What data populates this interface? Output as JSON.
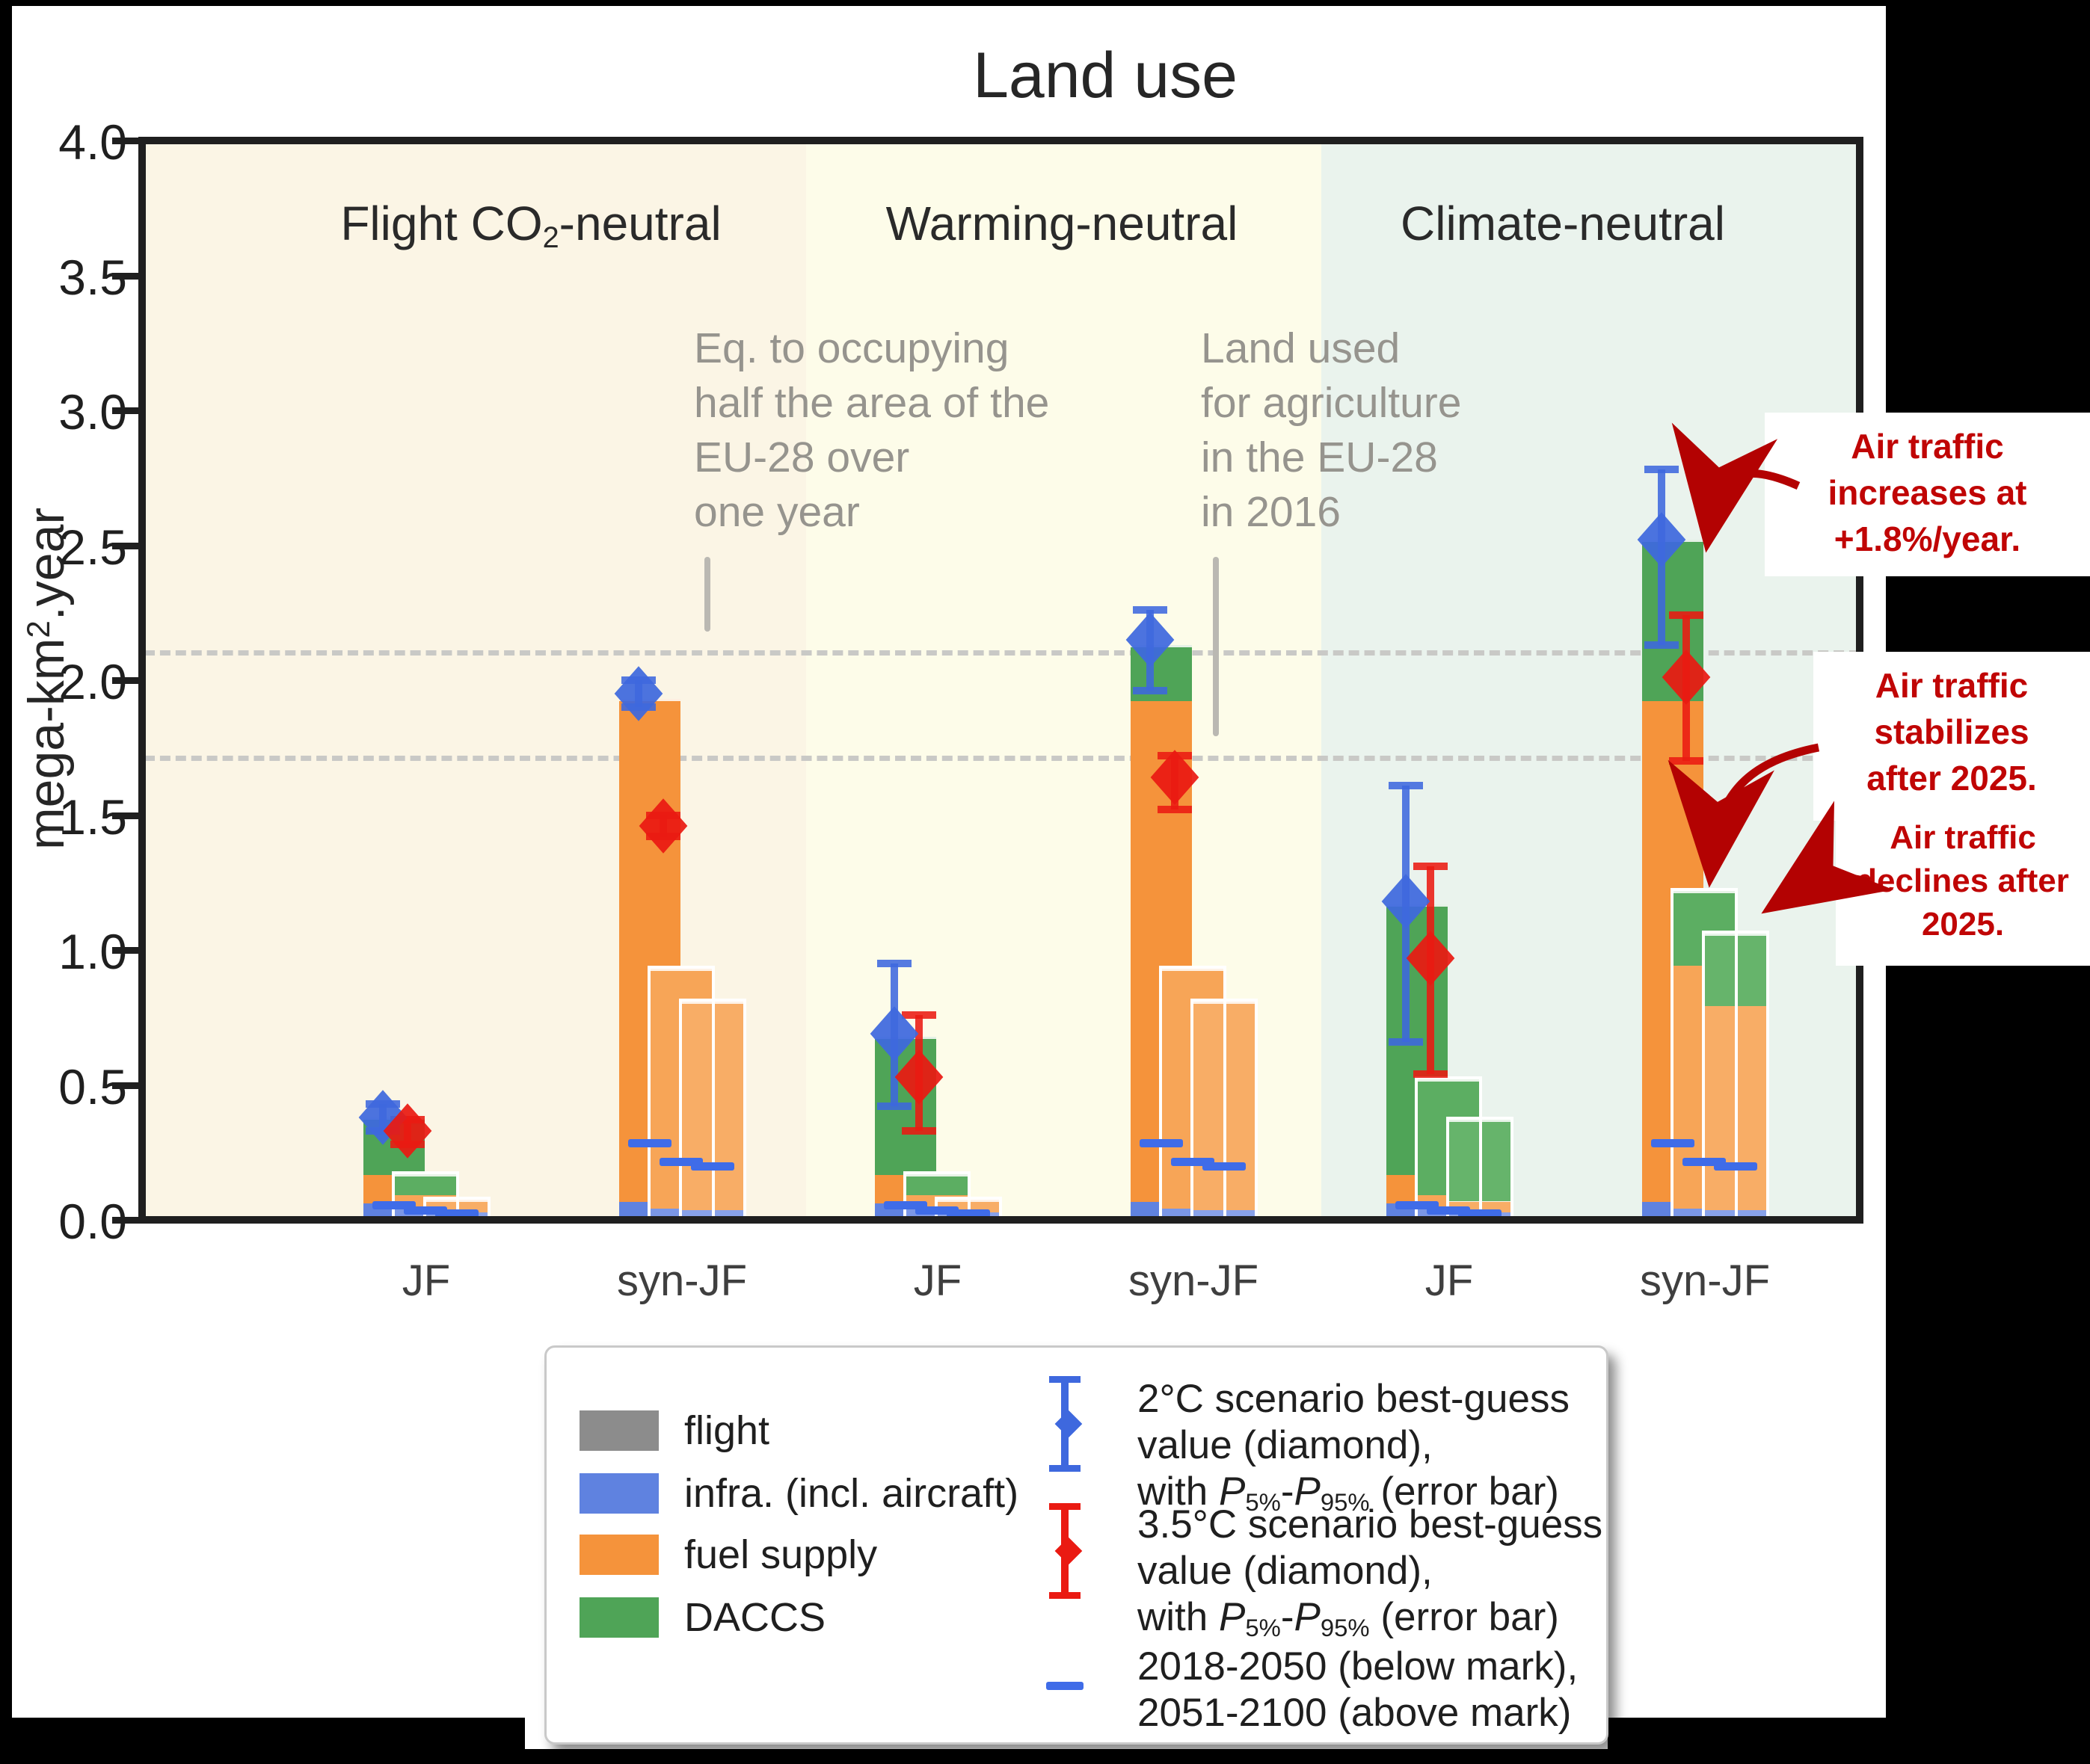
{
  "figure": {
    "title": "Land use"
  },
  "y_axis": {
    "label_runs": [
      {
        "t": "mega-km"
      },
      {
        "t": "2",
        "s": "sup"
      },
      {
        "t": ".year"
      }
    ],
    "min": 0,
    "max": 4,
    "step": 0.5
  },
  "scenarios": [
    {
      "label_runs": [
        {
          "t": "Flight CO"
        },
        {
          "t": "2",
          "s": "sub"
        },
        {
          "t": "-neutral"
        }
      ]
    },
    {
      "label_runs": [
        {
          "t": "Warming-neutral"
        }
      ]
    },
    {
      "label_runs": [
        {
          "t": "Climate-neutral"
        }
      ]
    }
  ],
  "ref_lines": [
    {
      "value": 2.11,
      "lines": [
        "Eq. to occupying",
        "half the area of the",
        "EU-28 over",
        "one year"
      ]
    },
    {
      "value": 1.72,
      "lines": [
        "Land used",
        "for agriculture",
        "in the EU-28",
        "in 2016"
      ]
    }
  ],
  "chart_data": {
    "type": "bar",
    "title": "Land use",
    "ylabel": "mega-km2.year",
    "ylim": [
      0,
      4
    ],
    "grid": false,
    "categories": [
      "JF",
      "syn-JF",
      "JF",
      "syn-JF",
      "JF",
      "syn-JF"
    ],
    "stack_order": [
      "flight",
      "infra",
      "fuel",
      "daccs"
    ],
    "series_note": "three overlapping bars per category = air traffic increases / stabilizes / declines; values are cumulative stack tops in mega-km2.year",
    "groups": [
      {
        "category": "JF",
        "scenario": 0,
        "bars": [
          {
            "infra": 0.07,
            "fuel": 0.175,
            "daccs": 0.38,
            "year_mark": 0.055
          },
          {
            "infra": 0.05,
            "fuel": 0.1,
            "daccs": 0.17,
            "year_mark": 0.035
          },
          {
            "infra": 0.035,
            "fuel": 0.075,
            "year_mark": 0.025
          }
        ],
        "p2c": {
          "value": 0.38,
          "lo": 0.33,
          "hi": 0.43
        },
        "p35c": {
          "value": 0.33,
          "lo": 0.28,
          "hi": 0.37
        }
      },
      {
        "category": "syn-JF",
        "scenario": 0,
        "bars": [
          {
            "infra": 0.075,
            "fuel": 1.93,
            "year_mark": 0.285
          },
          {
            "infra": 0.05,
            "fuel": 0.93,
            "year_mark": 0.215
          },
          {
            "infra": 0.045,
            "fuel": 0.81,
            "year_mark": 0.2
          }
        ],
        "p2c": {
          "value": 1.95,
          "lo": 1.9,
          "hi": 2.0
        },
        "p35c": {
          "value": 1.46,
          "lo": 1.42,
          "hi": 1.5
        }
      },
      {
        "category": "JF",
        "scenario": 1,
        "bars": [
          {
            "infra": 0.07,
            "fuel": 0.175,
            "daccs": 0.68,
            "year_mark": 0.055
          },
          {
            "infra": 0.05,
            "fuel": 0.1,
            "daccs": 0.17,
            "year_mark": 0.035
          },
          {
            "infra": 0.035,
            "fuel": 0.075,
            "year_mark": 0.025
          }
        ],
        "p2c": {
          "value": 0.69,
          "lo": 0.42,
          "hi": 0.95
        },
        "p35c": {
          "value": 0.53,
          "lo": 0.33,
          "hi": 0.76
        }
      },
      {
        "category": "syn-JF",
        "scenario": 1,
        "bars": [
          {
            "infra": 0.075,
            "fuel": 1.93,
            "daccs": 2.13,
            "year_mark": 0.285
          },
          {
            "infra": 0.05,
            "fuel": 0.93,
            "year_mark": 0.215
          },
          {
            "infra": 0.045,
            "fuel": 0.81,
            "year_mark": 0.2
          }
        ],
        "p2c": {
          "value": 2.15,
          "lo": 1.96,
          "hi": 2.26
        },
        "p35c": {
          "value": 1.64,
          "lo": 1.52,
          "hi": 1.72
        }
      },
      {
        "category": "JF",
        "scenario": 2,
        "bars": [
          {
            "infra": 0.07,
            "fuel": 0.175,
            "daccs": 1.17,
            "year_mark": 0.055
          },
          {
            "infra": 0.05,
            "fuel": 0.1,
            "daccs": 0.52,
            "year_mark": 0.035
          },
          {
            "infra": 0.035,
            "fuel": 0.075,
            "daccs": 0.37,
            "year_mark": 0.025
          }
        ],
        "p2c": {
          "value": 1.18,
          "lo": 0.66,
          "hi": 1.61
        },
        "p35c": {
          "value": 0.97,
          "lo": 0.54,
          "hi": 1.31
        }
      },
      {
        "category": "syn-JF",
        "scenario": 2,
        "bars": [
          {
            "infra": 0.075,
            "fuel": 1.93,
            "daccs": 2.52,
            "year_mark": 0.285
          },
          {
            "infra": 0.05,
            "fuel": 0.95,
            "daccs": 1.22,
            "year_mark": 0.215
          },
          {
            "infra": 0.045,
            "fuel": 0.8,
            "daccs": 1.06,
            "year_mark": 0.2
          }
        ],
        "p2c": {
          "value": 2.52,
          "lo": 2.13,
          "hi": 2.78
        },
        "p35c": {
          "value": 2.01,
          "lo": 1.7,
          "hi": 2.24
        }
      }
    ]
  },
  "legend": {
    "items": [
      {
        "key": "flight",
        "label": "flight",
        "color": "#8c8c8c"
      },
      {
        "key": "infra",
        "label": "infra. (incl. aircraft)",
        "color": "#5f82e0"
      },
      {
        "key": "fuel",
        "label": "fuel supply",
        "color": "#f5933b"
      },
      {
        "key": "daccs",
        "label": "DACCS",
        "color": "#4fa457"
      }
    ],
    "markers": [
      {
        "key": "p2c",
        "glyph": "errorbar",
        "color": "#3e68de",
        "lines_runs": [
          [
            {
              "t": "2°C scenario best-guess"
            }
          ],
          [
            {
              "t": "value (diamond),"
            }
          ],
          [
            {
              "t": "with "
            },
            {
              "t": "P",
              "s": "i"
            },
            {
              "t": "5%",
              "s": "sub"
            },
            {
              "t": "-"
            },
            {
              "t": "P",
              "s": "i"
            },
            {
              "t": "95%",
              "s": "sub"
            },
            {
              "t": " (error bar)"
            }
          ]
        ]
      },
      {
        "key": "p35c",
        "glyph": "errorbar",
        "color": "#ea1a12",
        "lines_runs": [
          [
            {
              "t": "3.5°C scenario best-guess"
            }
          ],
          [
            {
              "t": "value (diamond),"
            }
          ],
          [
            {
              "t": "with "
            },
            {
              "t": "P",
              "s": "i"
            },
            {
              "t": "5%",
              "s": "sub"
            },
            {
              "t": "-"
            },
            {
              "t": "P",
              "s": "i"
            },
            {
              "t": "95%",
              "s": "sub"
            },
            {
              "t": " (error bar)"
            }
          ]
        ]
      },
      {
        "key": "years",
        "glyph": "dash",
        "color": "#3f6ce8",
        "lines_runs": [
          [
            {
              "t": "2018-2050 (below mark),"
            }
          ],
          [
            {
              "t": "2051-2100 (above mark)"
            }
          ]
        ]
      }
    ]
  },
  "callouts": [
    {
      "lines": [
        "Air traffic",
        "increases at",
        "+1.8%/year."
      ]
    },
    {
      "lines": [
        "Air traffic",
        "stabilizes",
        "after 2025."
      ]
    },
    {
      "lines": [
        "Air traffic",
        "declines after",
        "2025."
      ]
    }
  ],
  "colors": {
    "region_flight": "#fbf5e5",
    "region_warming": "#fdfce9",
    "region_climate": "#eaf3ed",
    "infra_shades": [
      "#5f82e0",
      "#7b97e7",
      "#88a2ea"
    ],
    "fuel_shades": [
      "#f5933b",
      "#f7a557",
      "#f8ad66"
    ],
    "daccs_shades": [
      "#4fa457",
      "#5cae62",
      "#66b46b"
    ],
    "year_mark": "#3f6ce8",
    "marker_2c": "#3e68de",
    "marker_35c": "#ea1a12",
    "callout_text": "#c00505",
    "arrow": "#b30202",
    "ref_dash": "#c9c9c6",
    "gray_annotation": "#96948e"
  }
}
